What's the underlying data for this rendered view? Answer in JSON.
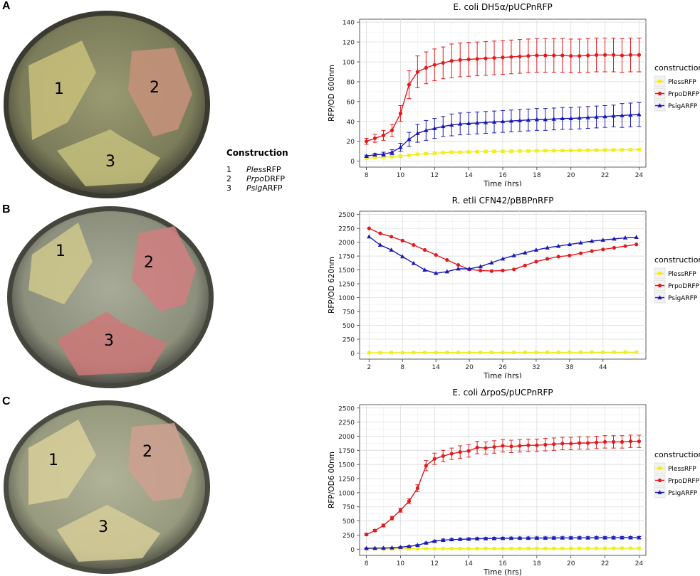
{
  "panels": [
    {
      "letter": "A",
      "plate_labels": [
        "1",
        "2",
        "3"
      ]
    },
    {
      "letter": "B",
      "plate_labels": [
        "1",
        "2",
        "3"
      ]
    },
    {
      "letter": "C",
      "plate_labels": [
        "1",
        "2",
        "3"
      ]
    }
  ],
  "construction_legend": {
    "title": "Construction",
    "rows": [
      {
        "num": "1",
        "italic": "Pless",
        "suffix": "RFP"
      },
      {
        "num": "2",
        "italic": "Prpo",
        "suffix": "DRFP"
      },
      {
        "num": "3",
        "italic": "Psig",
        "suffix": "ARFP"
      }
    ]
  },
  "colors": {
    "PlessRFP": "#f2ee16",
    "PrpoDRFP": "#e3191c",
    "PsigARFP": "#1a1ab8",
    "grid_major": "#dcdcdc",
    "grid_minor": "#efefef"
  },
  "chart_data": [
    {
      "type": "line",
      "title": "E. coli DH5α/pUCPnRFP",
      "xlabel": "Time (hrs)",
      "ylabel": "RFP/OD 600nm",
      "xlim": [
        7.6,
        24.4
      ],
      "ylim": [
        -6,
        143
      ],
      "xticks": [
        8,
        10,
        12,
        14,
        16,
        18,
        20,
        22,
        24
      ],
      "yticks": [
        0,
        20,
        40,
        60,
        80,
        100,
        120,
        140
      ],
      "legend_title": "construction",
      "legend_position": "right",
      "x": [
        8,
        8.5,
        9,
        9.5,
        10,
        10.5,
        11,
        11.5,
        12,
        12.5,
        13,
        13.5,
        14,
        14.5,
        15,
        15.5,
        16,
        16.5,
        17,
        17.5,
        18,
        18.5,
        19,
        19.5,
        20,
        20.5,
        21,
        21.5,
        22,
        22.5,
        23,
        23.5,
        24
      ],
      "series": [
        {
          "name": "PlessRFP",
          "marker": "square",
          "values": [
            3,
            3.5,
            4,
            4.5,
            5,
            6,
            7,
            7.5,
            8,
            8.5,
            9,
            9,
            9.3,
            9.5,
            9.7,
            9.8,
            10,
            10.1,
            10.2,
            10.3,
            10.4,
            10.5,
            10.6,
            10.7,
            10.8,
            10.9,
            11,
            11.1,
            11.2,
            11.3,
            11.4,
            11.5,
            11.6
          ],
          "errors": [
            1,
            1,
            1,
            1,
            1,
            1,
            1,
            1,
            1,
            1,
            1,
            1,
            1,
            1,
            1,
            1,
            1,
            1,
            1,
            1,
            1,
            1,
            1,
            1,
            1,
            1,
            1,
            1,
            1,
            1,
            1,
            1,
            1
          ]
        },
        {
          "name": "PrpoDRFP",
          "marker": "circle",
          "values": [
            20,
            23,
            26,
            31,
            48,
            77,
            90,
            94,
            97,
            99,
            101,
            102,
            102.5,
            103,
            103.5,
            104,
            104.5,
            105,
            105.5,
            106,
            106.5,
            106.5,
            106.5,
            106.5,
            106,
            106,
            106.5,
            107,
            107,
            107,
            106.5,
            107,
            107
          ],
          "errors": [
            3,
            4,
            5,
            6,
            8,
            14,
            16,
            16,
            16,
            16,
            17,
            17,
            17,
            17,
            17,
            17,
            17,
            17,
            17,
            17,
            17,
            17,
            17,
            17,
            17,
            17,
            17,
            17,
            17,
            17,
            17,
            17,
            17
          ]
        },
        {
          "name": "PsigARFP",
          "marker": "triangle",
          "values": [
            5,
            6.5,
            7,
            9,
            14,
            22,
            28,
            31,
            33,
            35,
            36.5,
            37.5,
            38,
            38.5,
            39,
            39.5,
            40,
            40.5,
            41,
            41.5,
            42,
            42,
            42.5,
            43,
            43,
            43.5,
            44,
            44.5,
            45,
            45.5,
            46,
            46.5,
            47
          ],
          "errors": [
            1,
            1.5,
            2,
            2.5,
            4,
            7,
            9,
            10,
            10,
            10,
            11,
            11,
            11,
            11,
            11,
            11,
            11,
            11,
            11,
            11,
            11,
            11,
            11,
            11,
            11,
            11,
            11,
            11,
            11,
            11,
            12,
            12,
            12
          ]
        }
      ]
    },
    {
      "type": "line",
      "title": "R. etli CFN42/pBBPnRFP",
      "xlabel": "Time (hrs)",
      "ylabel": "RFP/OD 620nm",
      "xlim": [
        0.3,
        51.7
      ],
      "ylim": [
        -110,
        2560
      ],
      "xticks": [
        2,
        8,
        14,
        20,
        26,
        32,
        38,
        44
      ],
      "yticks": [
        0,
        250,
        500,
        750,
        1000,
        1250,
        1500,
        1750,
        2000,
        2250,
        2500
      ],
      "legend_title": "construction",
      "legend_position": "right",
      "x": [
        2,
        4,
        6,
        8,
        10,
        12,
        14,
        16,
        18,
        20,
        22,
        24,
        26,
        28,
        30,
        32,
        34,
        36,
        38,
        40,
        42,
        44,
        46,
        48,
        50
      ],
      "series": [
        {
          "name": "PlessRFP",
          "marker": "square",
          "values": [
            5,
            6,
            7,
            8,
            8,
            9,
            9,
            9,
            10,
            10,
            10,
            11,
            11,
            11,
            12,
            12,
            12,
            13,
            13,
            13,
            14,
            14,
            14,
            15,
            15
          ]
        },
        {
          "name": "PrpoDRFP",
          "marker": "circle",
          "values": [
            2250,
            2160,
            2100,
            2030,
            1950,
            1860,
            1770,
            1680,
            1590,
            1510,
            1490,
            1480,
            1490,
            1510,
            1580,
            1650,
            1700,
            1740,
            1760,
            1800,
            1840,
            1870,
            1900,
            1930,
            1960
          ]
        },
        {
          "name": "PsigARFP",
          "marker": "triangle",
          "values": [
            2100,
            1950,
            1860,
            1740,
            1620,
            1500,
            1440,
            1470,
            1520,
            1520,
            1560,
            1630,
            1700,
            1760,
            1810,
            1860,
            1900,
            1930,
            1960,
            1990,
            2020,
            2040,
            2060,
            2080,
            2090
          ]
        }
      ]
    },
    {
      "type": "line",
      "title": "E. coli ΔrpoS/pUCPnRFP",
      "xlabel": "Time (hrs)",
      "ylabel": "RFP/OD6 00nm",
      "xlim": [
        7.6,
        24.4
      ],
      "ylim": [
        -110,
        2560
      ],
      "xticks": [
        8,
        10,
        12,
        14,
        16,
        18,
        20,
        22,
        24
      ],
      "yticks": [
        0,
        250,
        500,
        750,
        1000,
        1250,
        1500,
        1750,
        2000,
        2250,
        2500
      ],
      "legend_title": "construction",
      "legend_position": "right",
      "x": [
        8,
        8.5,
        9,
        9.5,
        10,
        10.5,
        11,
        11.5,
        12,
        12.5,
        13,
        13.5,
        14,
        14.5,
        15,
        15.5,
        16,
        16.5,
        17,
        17.5,
        18,
        18.5,
        19,
        19.5,
        20,
        20.5,
        21,
        21.5,
        22,
        22.5,
        23,
        23.5,
        24
      ],
      "series": [
        {
          "name": "PlessRFP",
          "marker": "square",
          "values": [
            5,
            5,
            6,
            6,
            7,
            7,
            8,
            8,
            9,
            9,
            10,
            10,
            10,
            11,
            11,
            11,
            12,
            12,
            12,
            13,
            13,
            13,
            14,
            14,
            14,
            15,
            15,
            15,
            16,
            16,
            16,
            17,
            17
          ],
          "errors": [
            3,
            3,
            3,
            3,
            3,
            3,
            3,
            3,
            3,
            3,
            3,
            3,
            3,
            3,
            3,
            3,
            3,
            3,
            3,
            3,
            3,
            3,
            3,
            3,
            3,
            3,
            3,
            3,
            3,
            3,
            3,
            3,
            3
          ]
        },
        {
          "name": "PrpoDRFP",
          "marker": "circle",
          "values": [
            260,
            330,
            420,
            550,
            690,
            850,
            1080,
            1480,
            1600,
            1650,
            1690,
            1720,
            1740,
            1800,
            1790,
            1810,
            1830,
            1820,
            1830,
            1840,
            1840,
            1850,
            1860,
            1870,
            1870,
            1880,
            1880,
            1890,
            1900,
            1900,
            1900,
            1910,
            1910
          ],
          "errors": [
            20,
            20,
            25,
            30,
            35,
            45,
            60,
            90,
            100,
            100,
            100,
            110,
            110,
            110,
            110,
            110,
            110,
            110,
            110,
            110,
            110,
            110,
            110,
            110,
            110,
            110,
            110,
            110,
            110,
            110,
            110,
            110,
            110
          ]
        },
        {
          "name": "PsigARFP",
          "marker": "triangle",
          "values": [
            15,
            18,
            20,
            25,
            35,
            50,
            70,
            110,
            140,
            160,
            170,
            175,
            180,
            185,
            188,
            190,
            192,
            194,
            195,
            196,
            197,
            198,
            199,
            200,
            200,
            201,
            201,
            202,
            202,
            202,
            203,
            203,
            204
          ],
          "errors": [
            5,
            5,
            5,
            6,
            8,
            10,
            12,
            15,
            20,
            20,
            20,
            20,
            20,
            20,
            20,
            20,
            20,
            20,
            20,
            20,
            20,
            20,
            20,
            20,
            20,
            20,
            20,
            20,
            20,
            20,
            20,
            20,
            20
          ]
        }
      ]
    }
  ]
}
